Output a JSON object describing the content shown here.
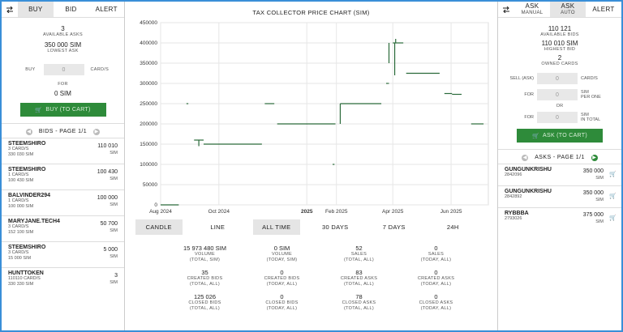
{
  "left": {
    "tabs": [
      "BUY",
      "BID",
      "ALERT"
    ],
    "available_asks": "3",
    "available_asks_label": "AVAILABLE ASKS",
    "lowest_ask": "350 000 SIM",
    "lowest_ask_label": "LOWEST ASK",
    "buy_label": "BUY",
    "buy_value": "0",
    "buy_unit": "CARD/S",
    "for_label": "FOR",
    "for_value": "0 SIM",
    "buy_button": "BUY (TO CART)",
    "bids_header": "BIDS - PAGE 1/1",
    "bids": [
      {
        "name": "STEEMSHIRO",
        "l1": "3 CARD/S",
        "l2": "330 030 SIM",
        "value": "110 010",
        "unit": "SIM"
      },
      {
        "name": "STEEMSHIRO",
        "l1": "1 CARD/S",
        "l2": "100 430 SIM",
        "value": "100 430",
        "unit": "SIM"
      },
      {
        "name": "BALVINDER294",
        "l1": "1 CARD/S",
        "l2": "100 000 SIM",
        "value": "100 000",
        "unit": "SIM"
      },
      {
        "name": "MARYJANE.TECH4",
        "l1": "3 CARD/S",
        "l2": "152 100 SIM",
        "value": "50 700",
        "unit": "SIM"
      },
      {
        "name": "STEEMSHIRO",
        "l1": "3 CARD/S",
        "l2": "15 000 SIM",
        "value": "5 000",
        "unit": "SIM"
      },
      {
        "name": "HUNTTOKEN",
        "l1": "110110 CARD/S",
        "l2": "330 330 SIM",
        "value": "3",
        "unit": "SIM"
      }
    ]
  },
  "center": {
    "title": "TAX COLLECTOR PRICE CHART (SIM)",
    "chart_buttons": [
      "CANDLE",
      "LINE",
      "ALL TIME",
      "30 DAYS",
      "7 DAYS",
      "24H"
    ],
    "stats": [
      {
        "v": "15 973 480 SIM",
        "l1": "VOLUME",
        "l2": "(TOTAL, SIM)"
      },
      {
        "v": "0 SIM",
        "l1": "VOLUME",
        "l2": "(TODAY, SIM)"
      },
      {
        "v": "52",
        "l1": "SALES",
        "l2": "(TOTAL, ALL)"
      },
      {
        "v": "0",
        "l1": "SALES",
        "l2": "(TODAY, ALL)"
      },
      {
        "v": "35",
        "l1": "CREATED BIDS",
        "l2": "(TOTAL, ALL)"
      },
      {
        "v": "0",
        "l1": "CREATED BIDS",
        "l2": "(TODAY, ALL)"
      },
      {
        "v": "83",
        "l1": "CREATED ASKS",
        "l2": "(TOTAL, ALL)"
      },
      {
        "v": "0",
        "l1": "CREATED ASKS",
        "l2": "(TODAY, ALL)"
      },
      {
        "v": "125 026",
        "l1": "CLOSED BIDS",
        "l2": "(TOTAL, ALL)"
      },
      {
        "v": "0",
        "l1": "CLOSED BIDS",
        "l2": "(TODAY, ALL)"
      },
      {
        "v": "78",
        "l1": "CLOSED ASKS",
        "l2": "(TOTAL, ALL)"
      },
      {
        "v": "0",
        "l1": "CLOSED ASKS",
        "l2": "(TODAY, ALL)"
      }
    ]
  },
  "right": {
    "tab_ask_manual": "ASK",
    "tab_ask_manual_sub": "MANUAL",
    "tab_ask_auto": "ASK",
    "tab_ask_auto_sub": "AUTO",
    "tab_alert": "ALERT",
    "available_bids": "110 121",
    "available_bids_label": "AVAILABLE BIDS",
    "highest_bid": "110 010 SIM",
    "highest_bid_label": "HIGHEST BID",
    "owned": "2",
    "owned_label": "OWNED CARDS",
    "sell_label": "SELL (ASK)",
    "sell_value": "0",
    "sell_unit": "CARD/S",
    "for_label": "FOR",
    "for_value": "0",
    "for_unit1": "SIM",
    "for_unit2": "PER ONE",
    "or_label": "OR",
    "for2_value": "0",
    "for2_unit1": "SIM",
    "for2_unit2": "IN TOTAL",
    "ask_button": "ASK (TO CART)",
    "asks_header": "ASKS - PAGE 1/1",
    "asks": [
      {
        "name": "GUNGUNKRISHU",
        "id": "2842096",
        "value": "350 000",
        "unit": "SIM"
      },
      {
        "name": "GUNGUNKRISHU",
        "id": "2842892",
        "value": "350 000",
        "unit": "SIM"
      },
      {
        "name": "RYBBBA",
        "id": "2793026",
        "value": "375 000",
        "unit": "SIM"
      }
    ]
  },
  "chart_data": {
    "type": "line",
    "title": "TAX COLLECTOR PRICE CHART (SIM)",
    "x_ticks": [
      "Aug 2024",
      "Oct 2024",
      "2025",
      "Feb 2025",
      "Apr 2025",
      "Jun 2025"
    ],
    "y_ticks": [
      0,
      50000,
      100000,
      150000,
      200000,
      250000,
      300000,
      350000,
      400000,
      450000
    ],
    "ylim": [
      0,
      450000
    ],
    "grid": true,
    "color": "#2a6a3a",
    "segments": [
      {
        "x0": "2024-08-01",
        "x1": "2024-08-20",
        "y": 0
      },
      {
        "x0": "2024-08-28",
        "x1": "2024-08-30",
        "y": 250000
      },
      {
        "x0": "2024-09-05",
        "x1": "2024-09-15",
        "y": 160000
      },
      {
        "x0": "2024-09-15",
        "x1": "2024-11-15",
        "y": 150000
      },
      {
        "x0": "2024-11-18",
        "x1": "2024-11-28",
        "y": 250000
      },
      {
        "x0": "2024-12-01",
        "x1": "2025-01-31",
        "y": 200000
      },
      {
        "x0": "2025-01-28",
        "x1": "2025-01-30",
        "y": 100000
      },
      {
        "x0": "2025-02-05",
        "x1": "2025-03-20",
        "y": 250000
      },
      {
        "x0": "2025-03-25",
        "x1": "2025-03-28",
        "y": 300000
      },
      {
        "x0": "2025-04-01",
        "x1": "2025-04-12",
        "y": 400000
      },
      {
        "x0": "2025-04-15",
        "x1": "2025-05-20",
        "y": 325000
      },
      {
        "x0": "2025-05-25",
        "x1": "2025-06-02",
        "y": 275000
      },
      {
        "x0": "2025-06-02",
        "x1": "2025-06-12",
        "y": 273000
      },
      {
        "x0": "2025-06-22",
        "x1": "2025-07-05",
        "y": 200000
      }
    ],
    "verticals": [
      {
        "x": "2024-09-10",
        "y0": 145000,
        "y1": 160000
      },
      {
        "x": "2025-02-05",
        "y0": 200000,
        "y1": 250000
      },
      {
        "x": "2025-03-28",
        "y0": 350000,
        "y1": 400000
      },
      {
        "x": "2025-04-03",
        "y0": 320000,
        "y1": 400000
      },
      {
        "x": "2025-04-04",
        "y0": 400000,
        "y1": 410000
      }
    ]
  }
}
